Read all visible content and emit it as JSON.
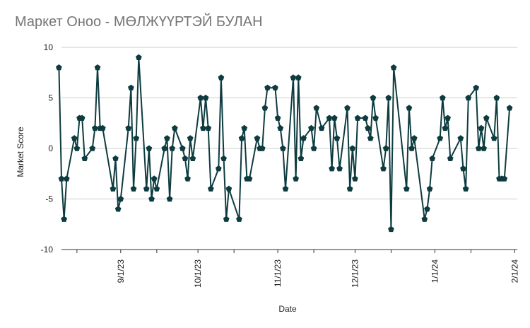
{
  "chart_data": {
    "type": "line",
    "title": "Маркет Оноо - МӨЛЖҮҮРТЭЙ БУЛАН",
    "xlabel": "Date",
    "ylabel": "Market Score",
    "ylim": [
      -10,
      10
    ],
    "y_ticks": [
      {
        "value": 10,
        "label": "10"
      },
      {
        "value": 5,
        "label": "5"
      },
      {
        "value": 0,
        "label": "0"
      },
      {
        "value": -5,
        "label": "-5"
      },
      {
        "value": -10,
        "label": "-10"
      }
    ],
    "xlim": [
      "2023-08-09",
      "2024-02-02"
    ],
    "x_ticks": [
      {
        "value": "2023-08-15",
        "label": ""
      },
      {
        "value": "2023-09-01",
        "label": "9/1/23"
      },
      {
        "value": "2023-09-15",
        "label": ""
      },
      {
        "value": "2023-10-01",
        "label": "10/1/23"
      },
      {
        "value": "2023-10-15",
        "label": ""
      },
      {
        "value": "2023-11-01",
        "label": "11/1/23"
      },
      {
        "value": "2023-11-15",
        "label": ""
      },
      {
        "value": "2023-12-01",
        "label": "12/1/23"
      },
      {
        "value": "2023-12-15",
        "label": ""
      },
      {
        "value": "2024-01-01",
        "label": "1/1/24"
      },
      {
        "value": "2024-01-15",
        "label": ""
      },
      {
        "value": "2024-02-01",
        "label": "2/1/24"
      }
    ],
    "grid": "horizontal",
    "legend": "none",
    "colors": {
      "line": "#0d3b3f",
      "marker": "#0d3b3f",
      "grid": "#cccccc",
      "axis": "#333333",
      "title": "#757575",
      "text": "#222222"
    },
    "series": [
      {
        "name": "",
        "points": [
          {
            "x": "2023-08-08",
            "y": 8
          },
          {
            "x": "2023-08-09",
            "y": -3
          },
          {
            "x": "2023-08-10",
            "y": -7
          },
          {
            "x": "2023-08-11",
            "y": -3
          },
          {
            "x": "2023-08-14",
            "y": 1
          },
          {
            "x": "2023-08-15",
            "y": 0
          },
          {
            "x": "2023-08-16",
            "y": 3
          },
          {
            "x": "2023-08-17",
            "y": 3
          },
          {
            "x": "2023-08-18",
            "y": -1
          },
          {
            "x": "2023-08-21",
            "y": 0
          },
          {
            "x": "2023-08-22",
            "y": 2
          },
          {
            "x": "2023-08-23",
            "y": 8
          },
          {
            "x": "2023-08-24",
            "y": 2
          },
          {
            "x": "2023-08-25",
            "y": 2
          },
          {
            "x": "2023-08-29",
            "y": -4
          },
          {
            "x": "2023-08-30",
            "y": -1
          },
          {
            "x": "2023-08-31",
            "y": -6
          },
          {
            "x": "2023-09-01",
            "y": -5
          },
          {
            "x": "2023-09-04",
            "y": 2
          },
          {
            "x": "2023-09-05",
            "y": 6
          },
          {
            "x": "2023-09-06",
            "y": -4
          },
          {
            "x": "2023-09-07",
            "y": 1
          },
          {
            "x": "2023-09-08",
            "y": 9
          },
          {
            "x": "2023-09-11",
            "y": -4
          },
          {
            "x": "2023-09-12",
            "y": 0
          },
          {
            "x": "2023-09-13",
            "y": -5
          },
          {
            "x": "2023-09-14",
            "y": -3
          },
          {
            "x": "2023-09-15",
            "y": -4
          },
          {
            "x": "2023-09-18",
            "y": 0
          },
          {
            "x": "2023-09-19",
            "y": 1
          },
          {
            "x": "2023-09-20",
            "y": -5
          },
          {
            "x": "2023-09-21",
            "y": 0
          },
          {
            "x": "2023-09-22",
            "y": 2
          },
          {
            "x": "2023-09-25",
            "y": 0
          },
          {
            "x": "2023-09-26",
            "y": -1
          },
          {
            "x": "2023-09-27",
            "y": -3
          },
          {
            "x": "2023-09-28",
            "y": 1
          },
          {
            "x": "2023-09-29",
            "y": -1
          },
          {
            "x": "2023-10-02",
            "y": 5
          },
          {
            "x": "2023-10-03",
            "y": 2
          },
          {
            "x": "2023-10-04",
            "y": 5
          },
          {
            "x": "2023-10-05",
            "y": 2
          },
          {
            "x": "2023-10-06",
            "y": -4
          },
          {
            "x": "2023-10-09",
            "y": -2
          },
          {
            "x": "2023-10-10",
            "y": 7
          },
          {
            "x": "2023-10-11",
            "y": -1
          },
          {
            "x": "2023-10-12",
            "y": -7
          },
          {
            "x": "2023-10-13",
            "y": -4
          },
          {
            "x": "2023-10-17",
            "y": -7
          },
          {
            "x": "2023-10-18",
            "y": 1
          },
          {
            "x": "2023-10-19",
            "y": 2
          },
          {
            "x": "2023-10-20",
            "y": -3
          },
          {
            "x": "2023-10-21",
            "y": -3
          },
          {
            "x": "2023-10-24",
            "y": 1
          },
          {
            "x": "2023-10-25",
            "y": 0
          },
          {
            "x": "2023-10-26",
            "y": 0
          },
          {
            "x": "2023-10-27",
            "y": 4
          },
          {
            "x": "2023-10-28",
            "y": 6
          },
          {
            "x": "2023-10-31",
            "y": 6
          },
          {
            "x": "2023-11-01",
            "y": 3
          },
          {
            "x": "2023-11-02",
            "y": 2
          },
          {
            "x": "2023-11-03",
            "y": 0
          },
          {
            "x": "2023-11-04",
            "y": -4
          },
          {
            "x": "2023-11-07",
            "y": 7
          },
          {
            "x": "2023-11-08",
            "y": -3
          },
          {
            "x": "2023-11-09",
            "y": 7
          },
          {
            "x": "2023-11-10",
            "y": -1
          },
          {
            "x": "2023-11-11",
            "y": 1
          },
          {
            "x": "2023-11-14",
            "y": 2
          },
          {
            "x": "2023-11-15",
            "y": 0
          },
          {
            "x": "2023-11-16",
            "y": 4
          },
          {
            "x": "2023-11-18",
            "y": 2
          },
          {
            "x": "2023-11-21",
            "y": 3
          },
          {
            "x": "2023-11-22",
            "y": -2
          },
          {
            "x": "2023-11-23",
            "y": 3
          },
          {
            "x": "2023-11-24",
            "y": 1
          },
          {
            "x": "2023-11-25",
            "y": -2
          },
          {
            "x": "2023-11-28",
            "y": 4
          },
          {
            "x": "2023-11-29",
            "y": -4
          },
          {
            "x": "2023-11-30",
            "y": 0
          },
          {
            "x": "2023-12-01",
            "y": -3
          },
          {
            "x": "2023-12-02",
            "y": 3
          },
          {
            "x": "2023-12-05",
            "y": 3
          },
          {
            "x": "2023-12-06",
            "y": 2
          },
          {
            "x": "2023-12-07",
            "y": 1
          },
          {
            "x": "2023-12-08",
            "y": 5
          },
          {
            "x": "2023-12-09",
            "y": 3
          },
          {
            "x": "2023-12-12",
            "y": -2
          },
          {
            "x": "2023-12-13",
            "y": 0
          },
          {
            "x": "2023-12-14",
            "y": 5
          },
          {
            "x": "2023-12-15",
            "y": -8
          },
          {
            "x": "2023-12-16",
            "y": 8
          },
          {
            "x": "2023-12-21",
            "y": -4
          },
          {
            "x": "2023-12-22",
            "y": 4
          },
          {
            "x": "2023-12-23",
            "y": 0
          },
          {
            "x": "2023-12-24",
            "y": 1
          },
          {
            "x": "2023-12-28",
            "y": -7
          },
          {
            "x": "2023-12-29",
            "y": -6
          },
          {
            "x": "2023-12-30",
            "y": -4
          },
          {
            "x": "2023-12-31",
            "y": -1
          },
          {
            "x": "2024-01-03",
            "y": 1
          },
          {
            "x": "2024-01-04",
            "y": 5
          },
          {
            "x": "2024-01-05",
            "y": 2
          },
          {
            "x": "2024-01-06",
            "y": 3
          },
          {
            "x": "2024-01-07",
            "y": -1
          },
          {
            "x": "2024-01-11",
            "y": 1
          },
          {
            "x": "2024-01-12",
            "y": -2
          },
          {
            "x": "2024-01-13",
            "y": -4
          },
          {
            "x": "2024-01-14",
            "y": 5
          },
          {
            "x": "2024-01-17",
            "y": 6
          },
          {
            "x": "2024-01-18",
            "y": 0
          },
          {
            "x": "2024-01-19",
            "y": 2
          },
          {
            "x": "2024-01-20",
            "y": 0
          },
          {
            "x": "2024-01-21",
            "y": 3
          },
          {
            "x": "2024-01-24",
            "y": 1
          },
          {
            "x": "2024-01-25",
            "y": 5
          },
          {
            "x": "2024-01-26",
            "y": -3
          },
          {
            "x": "2024-01-27",
            "y": -3
          },
          {
            "x": "2024-01-28",
            "y": -3
          },
          {
            "x": "2024-01-30",
            "y": 4
          }
        ]
      }
    ]
  }
}
